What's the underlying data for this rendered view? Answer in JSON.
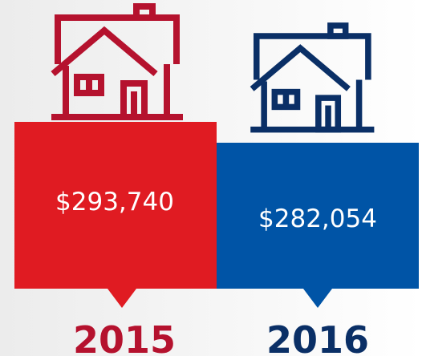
{
  "items": [
    {
      "value": "$293,740",
      "year": "2015"
    },
    {
      "value": "$282,054",
      "year": "2016"
    }
  ]
}
